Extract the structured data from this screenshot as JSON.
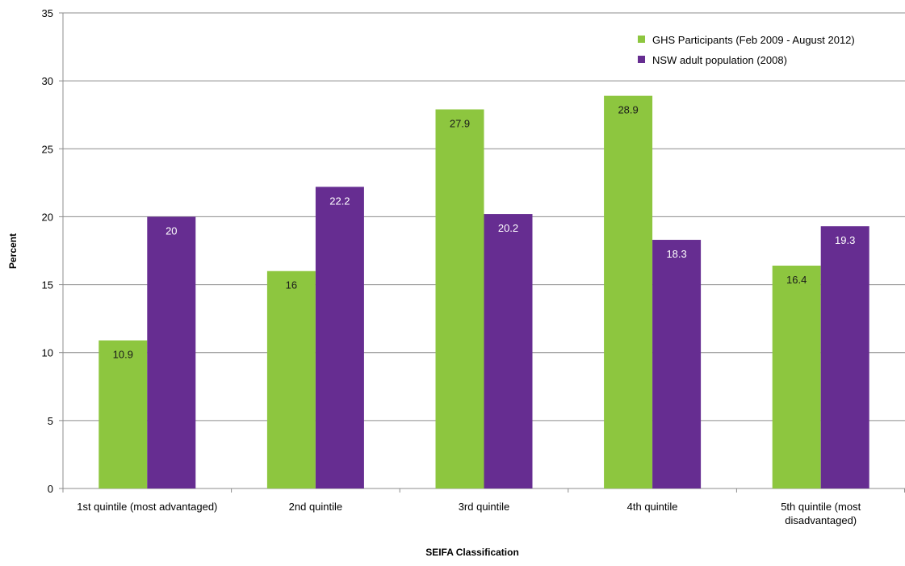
{
  "chart_data": {
    "type": "bar",
    "title": "",
    "xlabel": "SEIFA Classification",
    "ylabel": "Percent",
    "ylim": [
      0,
      35
    ],
    "yticks": [
      0,
      5,
      10,
      15,
      20,
      25,
      30,
      35
    ],
    "grid": true,
    "legend_position": "top-right",
    "categories": [
      [
        "1st quintile  (most advantaged)"
      ],
      [
        "2nd quintile"
      ],
      [
        "3rd quintile"
      ],
      [
        "4th quintile"
      ],
      [
        "5th quintile  (most",
        "disadvantaged)"
      ]
    ],
    "series": [
      {
        "name": "GHS Participants (Feb 2009 - August 2012)",
        "color": "#8dc63f",
        "label_color": "#1a1a1a",
        "values": [
          10.9,
          16,
          27.9,
          28.9,
          16.4
        ]
      },
      {
        "name": "NSW adult population (2008)",
        "color": "#662d91",
        "label_color": "#ffffff",
        "values": [
          20,
          22.2,
          20.2,
          18.3,
          19.3
        ]
      }
    ]
  }
}
